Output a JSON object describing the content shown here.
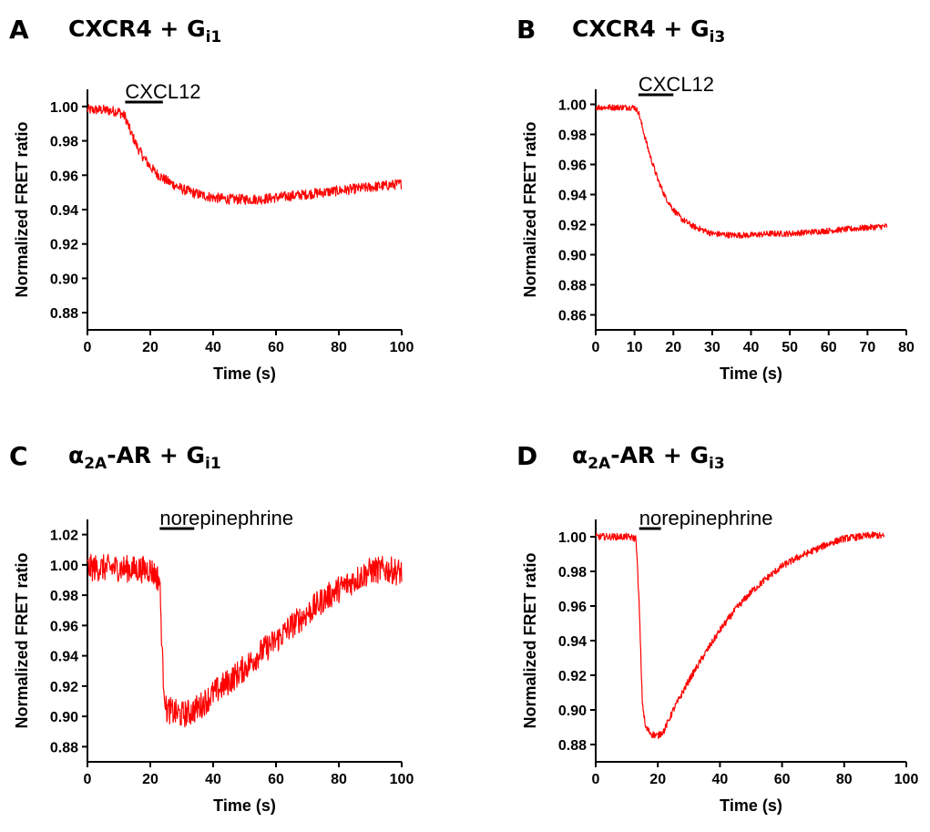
{
  "chart_data": [
    {
      "panel": "A",
      "type": "line",
      "title": "CXCR4 + G",
      "title_sub": "i1",
      "xlabel": "Time (s)",
      "ylabel": "Normalized FRET ratio",
      "xlim": [
        0,
        100
      ],
      "ylim": [
        0.87,
        1.01
      ],
      "xticks": [
        0,
        20,
        40,
        60,
        80,
        100
      ],
      "yticks": [
        0.88,
        0.9,
        0.92,
        0.94,
        0.96,
        0.98,
        1.0
      ],
      "stimulus": {
        "label": "CXCL12",
        "start": 12,
        "end": 24
      },
      "series": [
        {
          "color": "#ff0000",
          "noise": 0.003,
          "x": [
            0,
            5,
            10,
            12,
            14,
            16,
            18,
            20,
            22,
            25,
            30,
            35,
            40,
            45,
            50,
            55,
            60,
            65,
            70,
            75,
            80,
            85,
            90,
            95,
            100
          ],
          "y": [
            0.998,
            0.998,
            0.997,
            0.994,
            0.984,
            0.976,
            0.97,
            0.965,
            0.961,
            0.957,
            0.952,
            0.949,
            0.947,
            0.946,
            0.946,
            0.946,
            0.947,
            0.948,
            0.949,
            0.95,
            0.951,
            0.952,
            0.953,
            0.954,
            0.955
          ]
        }
      ]
    },
    {
      "panel": "B",
      "type": "line",
      "title": "CXCR4 + G",
      "title_sub": "i3",
      "xlabel": "Time (s)",
      "ylabel": "Normalized FRET ratio",
      "xlim": [
        0,
        80
      ],
      "ylim": [
        0.85,
        1.01
      ],
      "xticks": [
        0,
        10,
        20,
        30,
        40,
        50,
        60,
        70,
        80
      ],
      "yticks": [
        0.86,
        0.88,
        0.9,
        0.92,
        0.94,
        0.96,
        0.98,
        1.0
      ],
      "stimulus": {
        "label": "CXCL12",
        "start": 11,
        "end": 20
      },
      "series": [
        {
          "color": "#ff0000",
          "noise": 0.002,
          "x": [
            0,
            5,
            10,
            11,
            12,
            13,
            14,
            15,
            16,
            17,
            18,
            20,
            22,
            25,
            28,
            30,
            35,
            40,
            45,
            50,
            55,
            60,
            65,
            70,
            75
          ],
          "y": [
            0.998,
            0.998,
            0.998,
            0.995,
            0.985,
            0.975,
            0.966,
            0.958,
            0.95,
            0.944,
            0.938,
            0.93,
            0.924,
            0.919,
            0.916,
            0.914,
            0.913,
            0.913,
            0.914,
            0.914,
            0.915,
            0.916,
            0.917,
            0.918,
            0.919
          ]
        }
      ]
    },
    {
      "panel": "C",
      "type": "line",
      "title": "α",
      "title_sub": "2A",
      "title_rest": "-AR + G",
      "title_sub2": "i1",
      "xlabel": "Time (s)",
      "ylabel": "Normalized FRET ratio",
      "xlim": [
        0,
        100
      ],
      "ylim": [
        0.87,
        1.03
      ],
      "xticks": [
        0,
        20,
        40,
        60,
        80,
        100
      ],
      "yticks": [
        0.88,
        0.9,
        0.92,
        0.94,
        0.96,
        0.98,
        1.0,
        1.02
      ],
      "stimulus": {
        "label": "norepinephrine",
        "start": 23,
        "end": 34
      },
      "series": [
        {
          "color": "#ff0000",
          "noise": 0.009,
          "x": [
            0,
            5,
            10,
            15,
            20,
            23,
            24,
            25,
            27,
            30,
            33,
            36,
            40,
            45,
            50,
            55,
            60,
            65,
            70,
            75,
            80,
            85,
            90,
            95,
            100
          ],
          "y": [
            0.998,
            0.998,
            0.998,
            0.997,
            0.997,
            0.99,
            0.93,
            0.905,
            0.903,
            0.901,
            0.903,
            0.907,
            0.915,
            0.923,
            0.932,
            0.942,
            0.95,
            0.96,
            0.968,
            0.977,
            0.984,
            0.99,
            0.996,
            0.997,
            0.995
          ]
        }
      ]
    },
    {
      "panel": "D",
      "type": "line",
      "title": "α",
      "title_sub": "2A",
      "title_rest": "-AR + G",
      "title_sub2": "i3",
      "xlabel": "Time (s)",
      "ylabel": "Normalized FRET ratio",
      "xlim": [
        0,
        100
      ],
      "ylim": [
        0.87,
        1.01
      ],
      "xticks": [
        0,
        20,
        40,
        60,
        80,
        100
      ],
      "yticks": [
        0.88,
        0.9,
        0.92,
        0.94,
        0.96,
        0.98,
        1.0
      ],
      "stimulus": {
        "label": "norepinephrine",
        "start": 14,
        "end": 21
      },
      "series": [
        {
          "color": "#ff0000",
          "noise": 0.002,
          "x": [
            0,
            5,
            10,
            13,
            14,
            15,
            16,
            18,
            20,
            22,
            25,
            30,
            35,
            40,
            45,
            50,
            55,
            60,
            65,
            70,
            75,
            80,
            85,
            90,
            93
          ],
          "y": [
            1.0,
            1.0,
            1.0,
            0.999,
            0.96,
            0.905,
            0.89,
            0.886,
            0.885,
            0.888,
            0.9,
            0.917,
            0.932,
            0.946,
            0.958,
            0.968,
            0.976,
            0.983,
            0.988,
            0.992,
            0.996,
            0.999,
            1.0,
            1.001,
            1.0
          ]
        }
      ]
    }
  ]
}
